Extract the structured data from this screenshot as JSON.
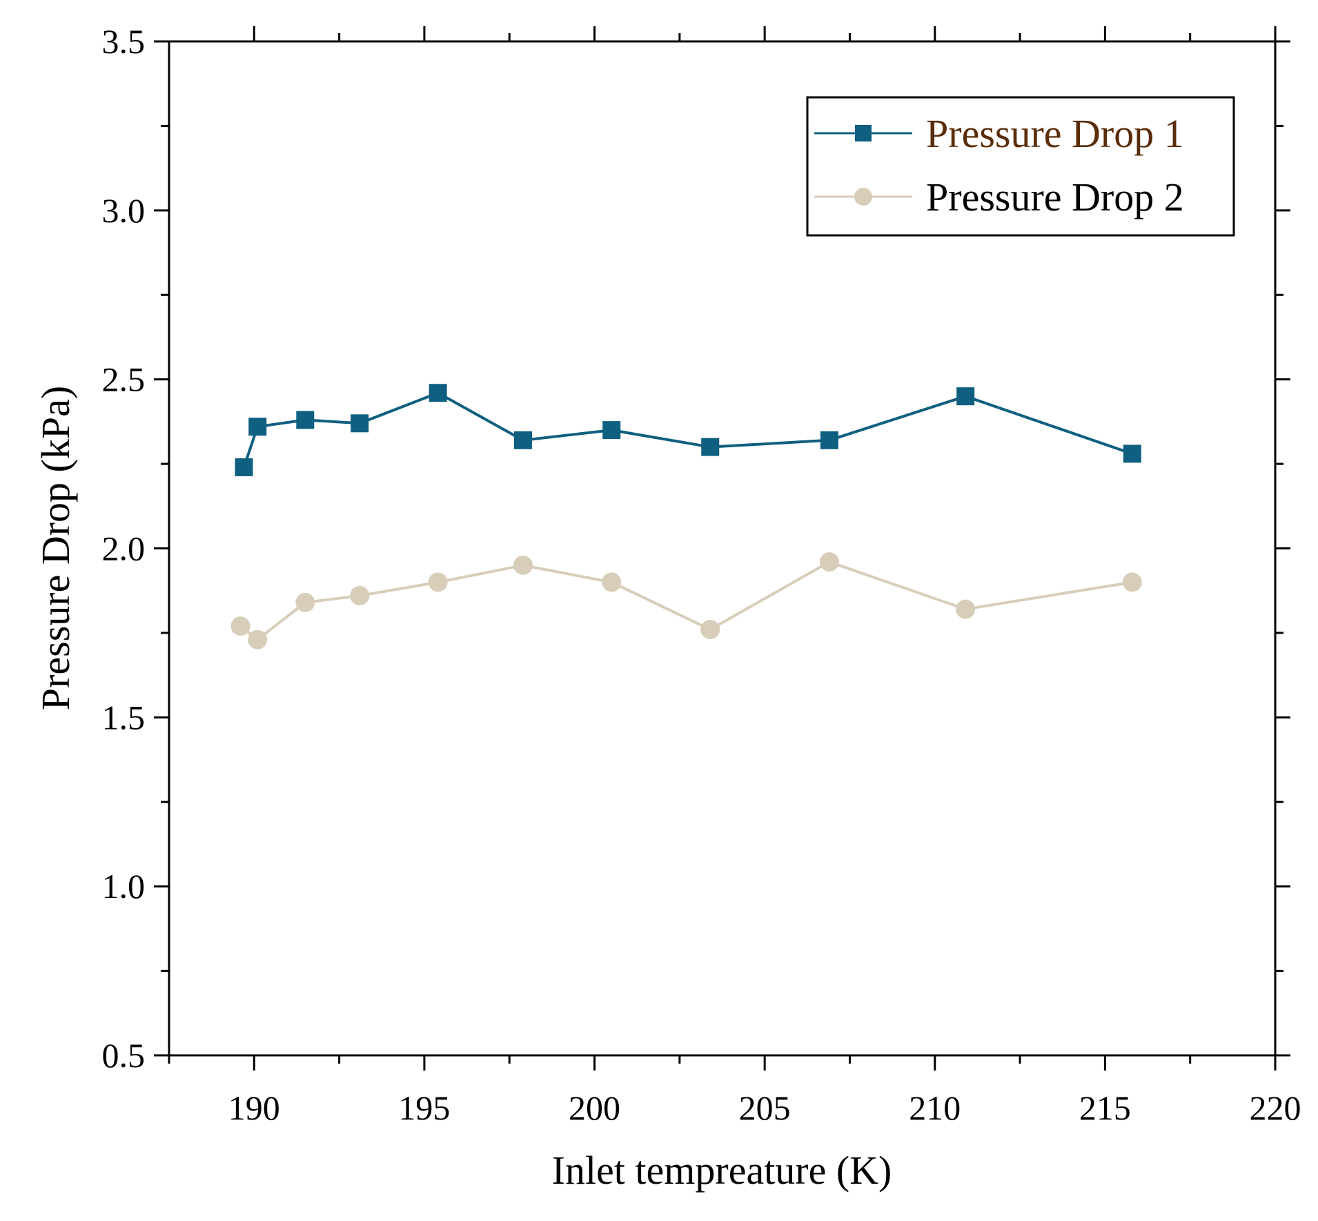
{
  "chart_data": {
    "type": "line",
    "title": "",
    "xlabel": "Inlet tempreature (K)",
    "ylabel": "Pressure Drop (kPa)",
    "xlim": [
      187.5,
      220
    ],
    "ylim": [
      0.5,
      3.5
    ],
    "xticks": [
      190,
      195,
      200,
      205,
      210,
      215,
      220
    ],
    "xtick_labels": [
      "190",
      "195",
      "200",
      "205",
      "210",
      "215",
      "220"
    ],
    "yticks": [
      0.5,
      1.0,
      1.5,
      2.0,
      2.5,
      3.0,
      3.5
    ],
    "ytick_labels": [
      "0.5",
      "1.0",
      "1.5",
      "2.0",
      "2.5",
      "3.0",
      "3.5"
    ],
    "legend_position": "top-right",
    "grid": false,
    "series": [
      {
        "name": "Pressure Drop 1",
        "color": "#0f5f80",
        "text_color": "#5a2d08",
        "marker": "square",
        "x": [
          189.7,
          190.1,
          191.5,
          193.1,
          195.4,
          197.9,
          200.5,
          203.4,
          206.9,
          210.9,
          215.8
        ],
        "y": [
          2.24,
          2.36,
          2.38,
          2.37,
          2.46,
          2.32,
          2.35,
          2.3,
          2.32,
          2.45,
          2.28
        ]
      },
      {
        "name": "Pressure Drop 2",
        "color": "#d8cdb9",
        "text_color": "#000000",
        "marker": "circle",
        "x": [
          189.6,
          190.1,
          191.5,
          193.1,
          195.4,
          197.9,
          200.5,
          203.4,
          206.9,
          210.9,
          215.8
        ],
        "y": [
          1.77,
          1.73,
          1.84,
          1.86,
          1.9,
          1.95,
          1.9,
          1.76,
          1.96,
          1.82,
          1.9
        ]
      }
    ]
  }
}
